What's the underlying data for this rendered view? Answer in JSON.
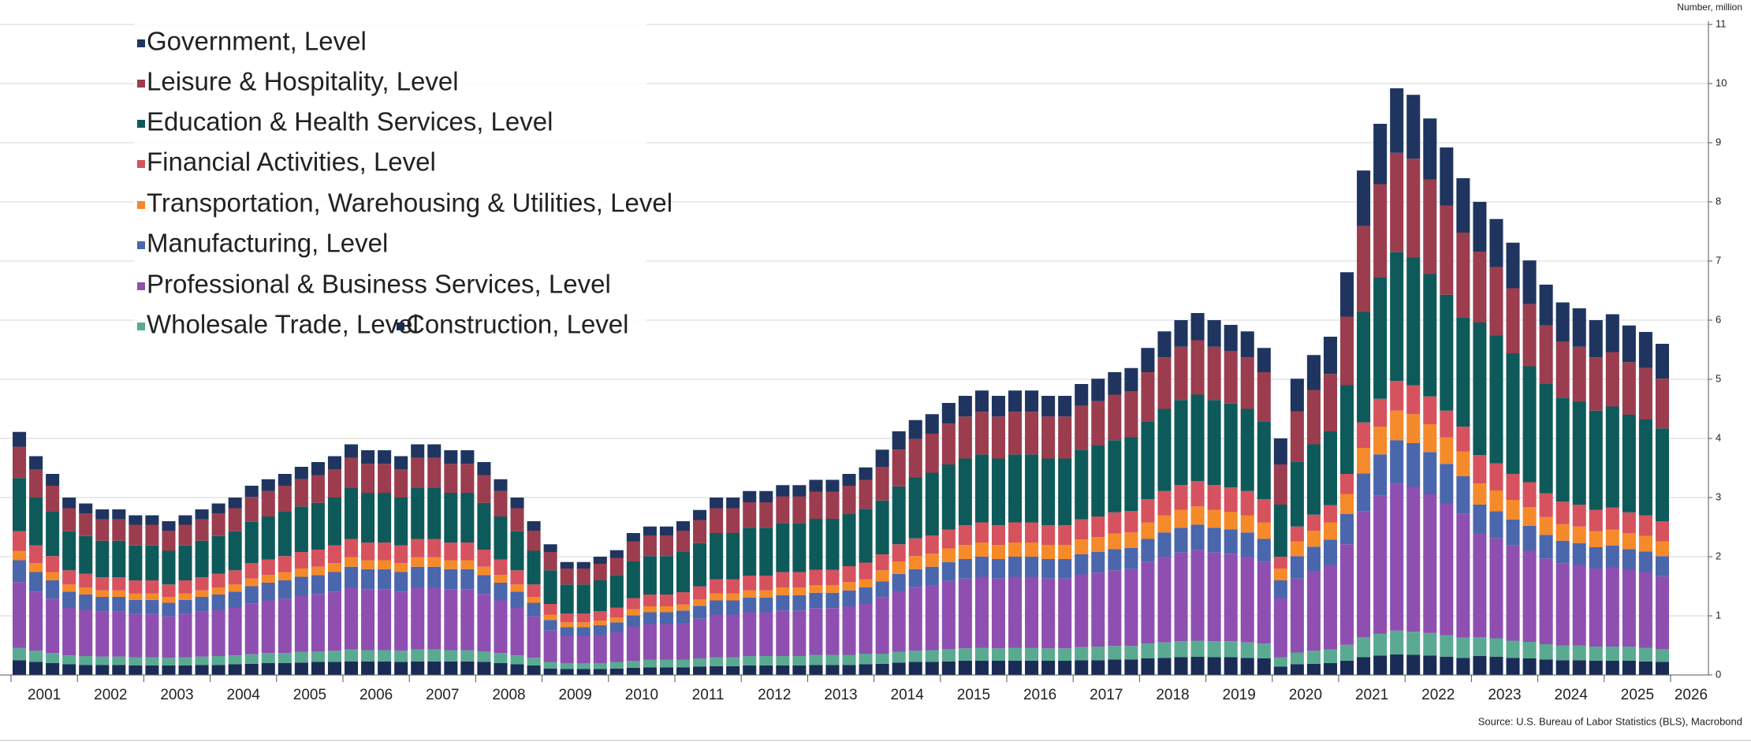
{
  "chart_data": {
    "type": "stacked_bar",
    "y_axis_label": "Number, million",
    "source": "Source: U.S. Bureau of Labor Statistics (BLS), Macrobond",
    "categories": [
      null,
      "2001",
      null,
      null,
      null,
      "2002",
      null,
      null,
      null,
      "2003",
      null,
      null,
      null,
      "2004",
      null,
      null,
      null,
      "2005",
      null,
      null,
      null,
      "2006",
      null,
      null,
      null,
      "2007",
      null,
      null,
      null,
      "2008",
      null,
      null,
      null,
      "2009",
      null,
      null,
      null,
      "2010",
      null,
      null,
      null,
      "2011",
      null,
      null,
      null,
      "2012",
      null,
      null,
      null,
      "2013",
      null,
      null,
      null,
      "2014",
      null,
      null,
      null,
      "2015",
      null,
      null,
      null,
      "2016",
      null,
      null,
      null,
      "2017",
      null,
      null,
      null,
      "2018",
      null,
      null,
      null,
      "2019",
      null,
      null,
      null,
      "2020",
      null,
      null,
      null,
      "2021",
      null,
      null,
      null,
      "2022",
      null,
      null,
      null,
      "2023",
      null,
      null,
      null,
      "2024",
      null,
      null,
      null,
      "2025",
      null,
      null,
      "2026"
    ],
    "ylim": [
      0,
      11
    ],
    "yticks": [
      0,
      1,
      2,
      3,
      4,
      5,
      6,
      7,
      8,
      9,
      10,
      11
    ],
    "grid": true,
    "legend": "top-left",
    "series": [
      {
        "name": "Government, Level",
        "color": "#1f3560",
        "values": [
          0.25,
          0.22,
          0.2,
          0.18,
          0.17,
          0.17,
          0.17,
          0.16,
          0.16,
          0.16,
          0.16,
          0.17,
          0.17,
          0.18,
          0.19,
          0.2,
          0.2,
          0.21,
          0.22,
          0.22,
          0.23,
          0.23,
          0.23,
          0.22,
          0.23,
          0.23,
          0.23,
          0.23,
          0.22,
          0.2,
          0.18,
          0.16,
          0.13,
          0.11,
          0.11,
          0.12,
          0.13,
          0.14,
          0.15,
          0.15,
          0.16,
          0.17,
          0.18,
          0.18,
          0.19,
          0.19,
          0.19,
          0.19,
          0.2,
          0.2,
          0.2,
          0.21,
          0.29,
          0.31,
          0.32,
          0.33,
          0.35,
          0.35,
          0.36,
          0.35,
          0.36,
          0.36,
          0.35,
          0.35,
          0.37,
          0.38,
          0.38,
          0.39,
          0.41,
          0.44,
          0.45,
          0.46,
          0.45,
          0.44,
          0.44,
          0.41,
          0.44,
          0.55,
          0.59,
          0.63,
          0.75,
          0.94,
          1.02,
          1.09,
          1.08,
          1.03,
          0.98,
          0.92,
          0.84,
          0.81,
          0.77,
          0.74,
          0.69,
          0.66,
          0.65,
          0.63,
          0.64,
          0.62,
          0.61,
          0.59,
          null
        ]
      },
      {
        "name": "Leisure & Hospitality, Level",
        "color": "#9b3d4e",
        "values": [
          0.53,
          0.48,
          0.44,
          0.39,
          0.38,
          0.36,
          0.36,
          0.35,
          0.35,
          0.34,
          0.35,
          0.36,
          0.38,
          0.39,
          0.42,
          0.43,
          0.44,
          0.46,
          0.47,
          0.48,
          0.51,
          0.49,
          0.49,
          0.48,
          0.51,
          0.51,
          0.49,
          0.49,
          0.47,
          0.43,
          0.39,
          0.34,
          0.31,
          0.27,
          0.27,
          0.28,
          0.29,
          0.34,
          0.35,
          0.35,
          0.36,
          0.39,
          0.42,
          0.42,
          0.43,
          0.43,
          0.45,
          0.45,
          0.46,
          0.46,
          0.48,
          0.49,
          0.57,
          0.62,
          0.65,
          0.66,
          0.69,
          0.71,
          0.72,
          0.71,
          0.72,
          0.72,
          0.71,
          0.71,
          0.74,
          0.75,
          0.77,
          0.78,
          0.83,
          0.87,
          0.9,
          0.92,
          0.9,
          0.89,
          0.87,
          0.83,
          0.68,
          0.85,
          0.92,
          0.97,
          1.16,
          1.45,
          1.58,
          1.68,
          1.67,
          1.6,
          1.51,
          1.43,
          1.2,
          1.16,
          1.1,
          1.05,
          0.99,
          0.95,
          0.93,
          0.9,
          0.92,
          0.89,
          0.87,
          0.84,
          null
        ]
      },
      {
        "name": "Education & Health Services, Level",
        "color": "#0e5a5b",
        "values": [
          0.9,
          0.81,
          0.75,
          0.66,
          0.64,
          0.62,
          0.62,
          0.59,
          0.59,
          0.57,
          0.59,
          0.62,
          0.64,
          0.66,
          0.7,
          0.73,
          0.75,
          0.77,
          0.79,
          0.81,
          0.86,
          0.84,
          0.84,
          0.81,
          0.86,
          0.86,
          0.84,
          0.84,
          0.79,
          0.73,
          0.66,
          0.57,
          0.57,
          0.49,
          0.49,
          0.52,
          0.55,
          0.62,
          0.65,
          0.65,
          0.68,
          0.73,
          0.78,
          0.78,
          0.81,
          0.81,
          0.83,
          0.83,
          0.86,
          0.86,
          0.88,
          0.91,
          0.91,
          0.98,
          1.03,
          1.06,
          1.1,
          1.13,
          1.15,
          1.13,
          1.15,
          1.15,
          1.13,
          1.13,
          1.18,
          1.2,
          1.22,
          1.25,
          1.32,
          1.39,
          1.44,
          1.46,
          1.44,
          1.42,
          1.39,
          1.32,
          0.88,
          1.1,
          1.19,
          1.25,
          1.5,
          1.87,
          2.05,
          2.18,
          2.16,
          2.07,
          1.96,
          1.85,
          2.24,
          2.16,
          2.04,
          1.96,
          1.85,
          1.76,
          1.74,
          1.68,
          1.71,
          1.65,
          1.62,
          1.57,
          null
        ]
      },
      {
        "name": "Financial Activities, Level",
        "color": "#d6525f",
        "values": [
          0.33,
          0.3,
          0.27,
          0.24,
          0.23,
          0.22,
          0.22,
          0.22,
          0.22,
          0.21,
          0.22,
          0.22,
          0.23,
          0.24,
          0.26,
          0.26,
          0.27,
          0.28,
          0.29,
          0.3,
          0.31,
          0.3,
          0.3,
          0.3,
          0.31,
          0.31,
          0.3,
          0.3,
          0.29,
          0.26,
          0.24,
          0.21,
          0.18,
          0.15,
          0.15,
          0.16,
          0.17,
          0.19,
          0.2,
          0.2,
          0.21,
          0.22,
          0.24,
          0.24,
          0.25,
          0.25,
          0.26,
          0.26,
          0.26,
          0.26,
          0.27,
          0.28,
          0.27,
          0.29,
          0.3,
          0.31,
          0.32,
          0.33,
          0.34,
          0.33,
          0.34,
          0.34,
          0.33,
          0.33,
          0.34,
          0.35,
          0.36,
          0.36,
          0.39,
          0.41,
          0.42,
          0.43,
          0.42,
          0.41,
          0.41,
          0.39,
          0.2,
          0.25,
          0.27,
          0.29,
          0.34,
          0.43,
          0.47,
          0.5,
          0.49,
          0.47,
          0.45,
          0.42,
          0.48,
          0.46,
          0.44,
          0.42,
          0.4,
          0.38,
          0.37,
          0.36,
          0.37,
          0.35,
          0.35,
          0.34,
          null
        ]
      },
      {
        "name": "Transportation, Warehousing & Utilities, Level",
        "color": "#f58a2a",
        "values": [
          0.16,
          0.15,
          0.14,
          0.12,
          0.12,
          0.11,
          0.11,
          0.11,
          0.11,
          0.1,
          0.11,
          0.11,
          0.12,
          0.12,
          0.13,
          0.13,
          0.14,
          0.14,
          0.14,
          0.15,
          0.16,
          0.15,
          0.15,
          0.15,
          0.16,
          0.16,
          0.15,
          0.15,
          0.14,
          0.13,
          0.12,
          0.1,
          0.09,
          0.08,
          0.08,
          0.08,
          0.08,
          0.1,
          0.1,
          0.1,
          0.1,
          0.11,
          0.12,
          0.12,
          0.12,
          0.12,
          0.13,
          0.13,
          0.13,
          0.13,
          0.14,
          0.14,
          0.19,
          0.21,
          0.22,
          0.22,
          0.23,
          0.24,
          0.24,
          0.24,
          0.24,
          0.24,
          0.24,
          0.24,
          0.25,
          0.25,
          0.26,
          0.26,
          0.28,
          0.29,
          0.3,
          0.31,
          0.3,
          0.3,
          0.29,
          0.28,
          0.2,
          0.25,
          0.27,
          0.29,
          0.34,
          0.43,
          0.47,
          0.5,
          0.49,
          0.47,
          0.45,
          0.42,
          0.36,
          0.35,
          0.33,
          0.32,
          0.3,
          0.28,
          0.28,
          0.27,
          0.27,
          0.27,
          0.26,
          0.25,
          null
        ]
      },
      {
        "name": "Manufacturing, Level",
        "color": "#4a66ac",
        "values": [
          0.37,
          0.33,
          0.31,
          0.27,
          0.26,
          0.25,
          0.25,
          0.24,
          0.24,
          0.23,
          0.24,
          0.25,
          0.26,
          0.27,
          0.29,
          0.3,
          0.31,
          0.32,
          0.32,
          0.33,
          0.35,
          0.34,
          0.34,
          0.33,
          0.35,
          0.35,
          0.34,
          0.34,
          0.32,
          0.3,
          0.27,
          0.23,
          0.18,
          0.15,
          0.15,
          0.16,
          0.17,
          0.19,
          0.2,
          0.2,
          0.21,
          0.22,
          0.24,
          0.24,
          0.25,
          0.25,
          0.26,
          0.26,
          0.26,
          0.26,
          0.27,
          0.28,
          0.27,
          0.29,
          0.3,
          0.31,
          0.32,
          0.33,
          0.34,
          0.33,
          0.34,
          0.34,
          0.33,
          0.33,
          0.34,
          0.35,
          0.36,
          0.36,
          0.39,
          0.41,
          0.42,
          0.43,
          0.42,
          0.41,
          0.41,
          0.39,
          0.3,
          0.38,
          0.41,
          0.43,
          0.51,
          0.64,
          0.7,
          0.74,
          0.74,
          0.71,
          0.67,
          0.63,
          0.48,
          0.46,
          0.44,
          0.42,
          0.4,
          0.38,
          0.37,
          0.36,
          0.37,
          0.35,
          0.35,
          0.34,
          null
        ]
      },
      {
        "name": "Professional & Business Services, Level",
        "color": "#8f4fb0",
        "values": [
          1.11,
          1.0,
          0.92,
          0.81,
          0.78,
          0.76,
          0.76,
          0.73,
          0.73,
          0.7,
          0.73,
          0.76,
          0.78,
          0.81,
          0.86,
          0.89,
          0.92,
          0.95,
          0.97,
          1.0,
          1.05,
          1.03,
          1.03,
          1.0,
          1.05,
          1.05,
          1.03,
          1.03,
          0.97,
          0.89,
          0.81,
          0.7,
          0.53,
          0.46,
          0.46,
          0.48,
          0.5,
          0.58,
          0.6,
          0.6,
          0.62,
          0.67,
          0.72,
          0.72,
          0.74,
          0.74,
          0.77,
          0.77,
          0.79,
          0.79,
          0.82,
          0.84,
          0.95,
          1.03,
          1.08,
          1.1,
          1.15,
          1.18,
          1.2,
          1.18,
          1.2,
          1.2,
          1.18,
          1.18,
          1.23,
          1.25,
          1.28,
          1.3,
          1.38,
          1.45,
          1.5,
          1.53,
          1.5,
          1.48,
          1.45,
          1.38,
          1.0,
          1.25,
          1.35,
          1.43,
          1.7,
          2.13,
          2.33,
          2.48,
          2.45,
          2.35,
          2.23,
          2.1,
          1.76,
          1.69,
          1.61,
          1.54,
          1.45,
          1.39,
          1.36,
          1.32,
          1.34,
          1.3,
          1.28,
          1.23,
          null
        ]
      },
      {
        "name": "Wholesale Trade, Level",
        "color": "#5aaa92",
        "values": [
          0.21,
          0.19,
          0.17,
          0.15,
          0.15,
          0.14,
          0.14,
          0.14,
          0.14,
          0.13,
          0.14,
          0.14,
          0.15,
          0.15,
          0.16,
          0.17,
          0.17,
          0.18,
          0.18,
          0.19,
          0.2,
          0.19,
          0.19,
          0.19,
          0.2,
          0.2,
          0.19,
          0.19,
          0.18,
          0.17,
          0.15,
          0.13,
          0.11,
          0.1,
          0.1,
          0.1,
          0.11,
          0.12,
          0.13,
          0.13,
          0.13,
          0.14,
          0.15,
          0.15,
          0.16,
          0.16,
          0.16,
          0.16,
          0.17,
          0.17,
          0.17,
          0.18,
          0.17,
          0.18,
          0.19,
          0.2,
          0.21,
          0.21,
          0.22,
          0.21,
          0.22,
          0.22,
          0.21,
          0.21,
          0.22,
          0.23,
          0.23,
          0.23,
          0.25,
          0.26,
          0.27,
          0.27,
          0.27,
          0.27,
          0.26,
          0.25,
          0.16,
          0.2,
          0.22,
          0.23,
          0.27,
          0.34,
          0.37,
          0.4,
          0.39,
          0.38,
          0.36,
          0.34,
          0.32,
          0.31,
          0.29,
          0.28,
          0.26,
          0.25,
          0.25,
          0.24,
          0.24,
          0.24,
          0.23,
          0.22,
          null
        ]
      },
      {
        "name": "Construction, Level",
        "color": "#1a2c55",
        "values": [
          0.25,
          0.22,
          0.2,
          0.18,
          0.17,
          0.17,
          0.17,
          0.16,
          0.16,
          0.16,
          0.16,
          0.17,
          0.17,
          0.18,
          0.19,
          0.2,
          0.2,
          0.21,
          0.22,
          0.22,
          0.23,
          0.23,
          0.23,
          0.22,
          0.23,
          0.23,
          0.23,
          0.23,
          0.22,
          0.2,
          0.18,
          0.16,
          0.11,
          0.1,
          0.1,
          0.1,
          0.11,
          0.12,
          0.13,
          0.13,
          0.13,
          0.14,
          0.15,
          0.15,
          0.16,
          0.16,
          0.16,
          0.16,
          0.17,
          0.17,
          0.17,
          0.18,
          0.19,
          0.21,
          0.22,
          0.22,
          0.23,
          0.24,
          0.24,
          0.24,
          0.24,
          0.24,
          0.24,
          0.24,
          0.25,
          0.25,
          0.26,
          0.26,
          0.28,
          0.29,
          0.3,
          0.31,
          0.3,
          0.3,
          0.29,
          0.28,
          0.14,
          0.18,
          0.19,
          0.2,
          0.24,
          0.3,
          0.33,
          0.35,
          0.34,
          0.33,
          0.31,
          0.29,
          0.32,
          0.31,
          0.29,
          0.28,
          0.26,
          0.25,
          0.25,
          0.24,
          0.24,
          0.24,
          0.23,
          0.22,
          null
        ]
      }
    ]
  }
}
